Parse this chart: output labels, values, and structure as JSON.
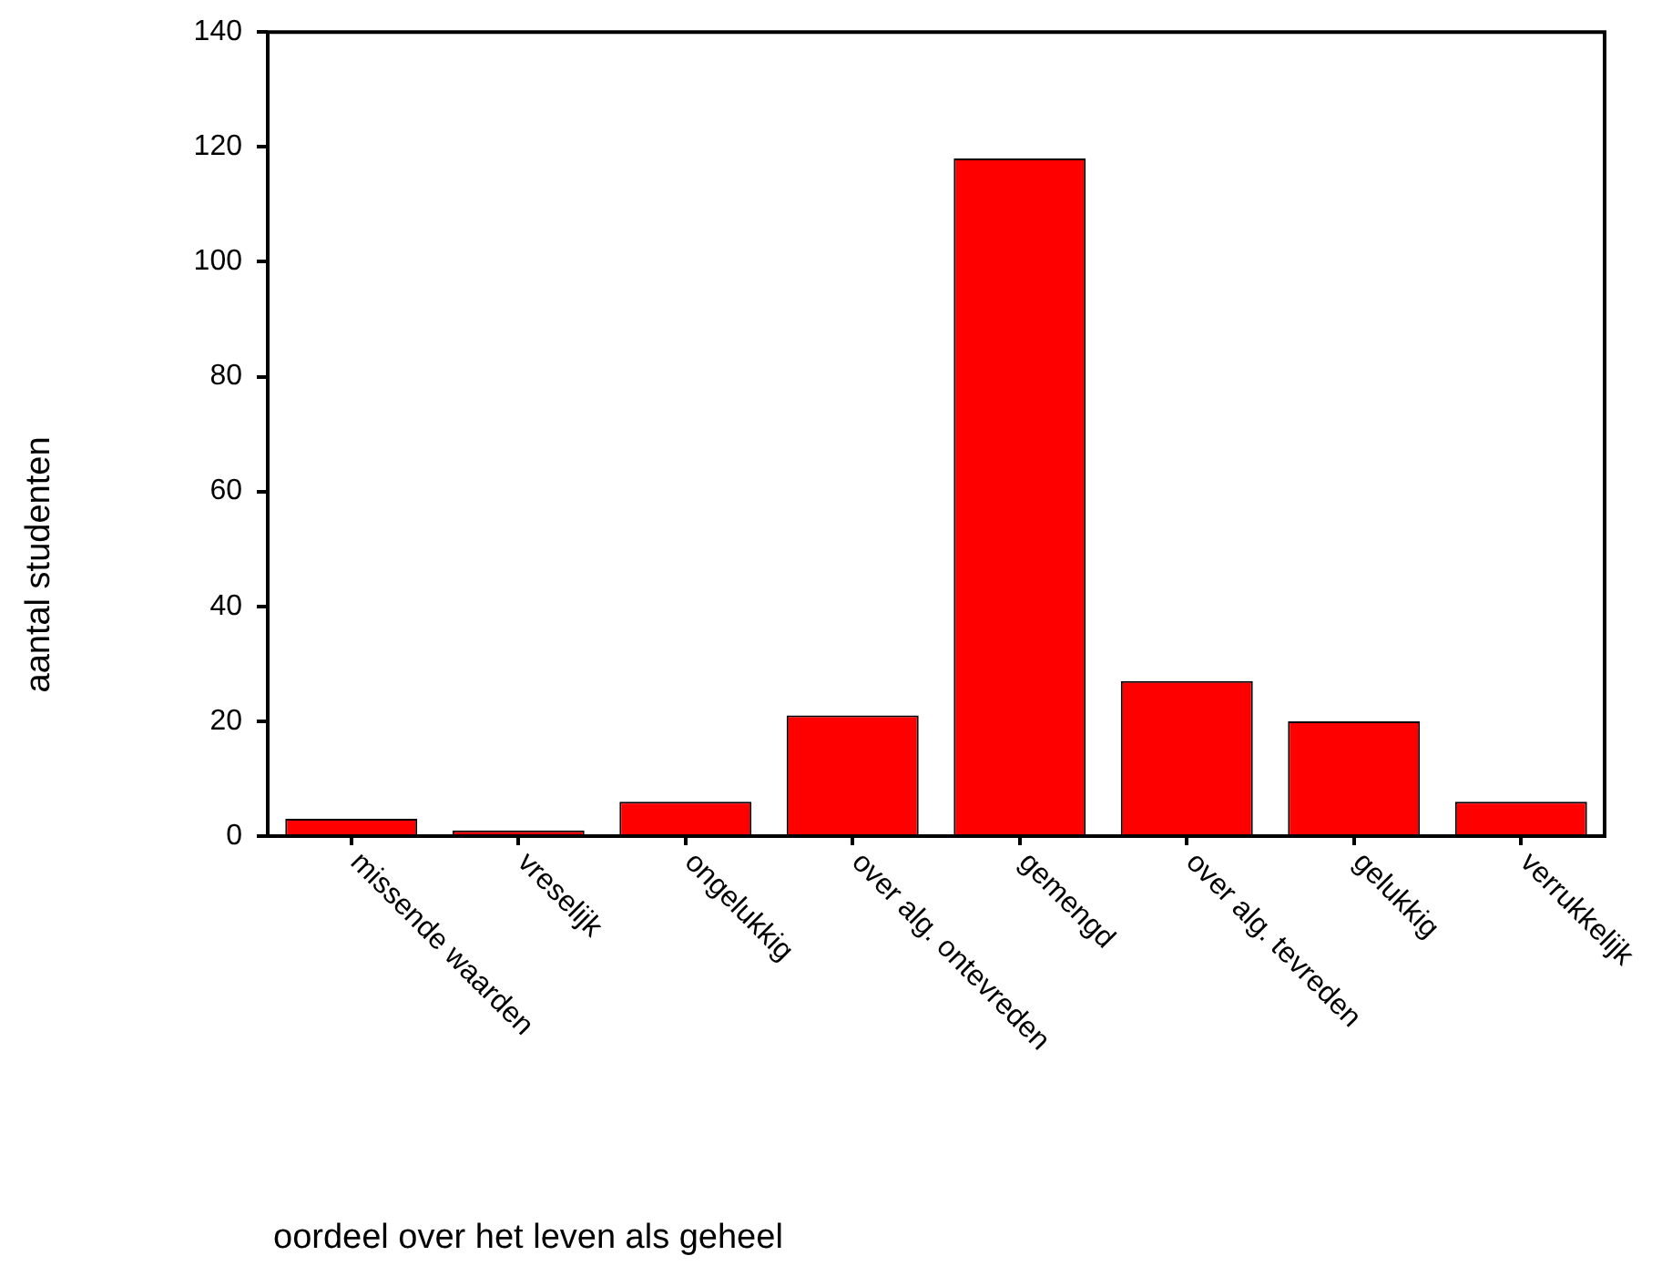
{
  "chart_data": {
    "type": "bar",
    "xlabel": "oordeel over het leven als geheel",
    "ylabel": "aantal studenten",
    "categories": [
      "missende waarden",
      "vreselijk",
      "ongelukkig",
      "over alg. ontevreden",
      "gemengd",
      "over alg. tevreden",
      "gelukkig",
      "verrukkelijk"
    ],
    "values": [
      3,
      1,
      6,
      21,
      118,
      27,
      20,
      6
    ],
    "color": "#ff0000",
    "ylim": [
      0,
      140
    ],
    "yticks": [
      0,
      20,
      40,
      60,
      80,
      100,
      120,
      140
    ],
    "grid": false,
    "legend": false
  }
}
